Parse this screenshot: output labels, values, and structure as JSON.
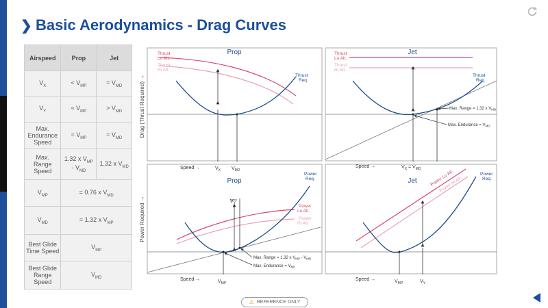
{
  "header": {
    "title": "Basic Aerodynamics - Drag Curves"
  },
  "table": {
    "headers": [
      "Airspeed",
      "Prop",
      "Jet"
    ],
    "rows": [
      {
        "label": "V",
        "label_sub": "X",
        "prop": "< V",
        "prop_sub": "MP",
        "jet": "= V",
        "jet_sub": "MD"
      },
      {
        "label": "V",
        "label_sub": "Y",
        "prop": "≈ V",
        "prop_sub": "MP",
        "jet": "> V",
        "jet_sub": "MD"
      },
      {
        "label": "Max. Endurance Speed",
        "prop": "= V",
        "prop_sub": "MP",
        "jet": "= V",
        "jet_sub": "MD"
      },
      {
        "label": "Max. Range Speed",
        "prop": "1.32 x V",
        "prop_sub": "MP",
        "prop_tail": "- V",
        "prop_tail_sub": "MD",
        "jet": "1.32 x V",
        "jet_sub": "MD"
      },
      {
        "label": "V",
        "label_sub": "MP",
        "merged": "= 0.76 x V",
        "merged_sub": "MD"
      },
      {
        "label": "V",
        "label_sub": "MD",
        "merged": "= 1.32 x V",
        "merged_sub": "MP"
      },
      {
        "label": "Best Glide Time Speed",
        "merged": "V",
        "merged_sub": "MP"
      },
      {
        "label": "Best Glide Range Speed",
        "merged": "V",
        "merged_sub": "MD"
      }
    ]
  },
  "diagram": {
    "y_label_top": "Drag (Thrust Required) →",
    "y_label_bottom": "Power Required →",
    "speed_label": "Speed →",
    "panels": {
      "prop_drag": {
        "title": "Prop",
        "thrust_lo": [
          "Thrust",
          "Lo Alt."
        ],
        "thrust_hi": [
          "Thrust",
          "Hi Alt."
        ],
        "curve_label": [
          "Thrust",
          "Req."
        ],
        "tick_vx": "V",
        "tick_vx_sub": "X",
        "tick_vmd": "V",
        "tick_vmd_sub": "MD"
      },
      "jet_drag": {
        "title": "Jet",
        "thrust_lo": [
          "Thrust",
          "Lo Alt."
        ],
        "thrust_hi": [
          "Thrust",
          "Hi Alt."
        ],
        "curve_label": [
          "Thrust",
          "Req."
        ],
        "max_range": "Max. Range = 1.32 x V",
        "max_range_sub": "MD",
        "max_endurance": "Max. Endurance = V",
        "max_endurance_sub": "MD",
        "tick": "V",
        "tick_sub": "X",
        "tick_mid": " = V",
        "tick_sub2": "MD"
      },
      "prop_power": {
        "title": "Prop",
        "curve_label": [
          "Power",
          "Req."
        ],
        "power_lo": [
          "Power",
          "Lo Alt."
        ],
        "power_hi": [
          "Power",
          "Hi Alt."
        ],
        "vy": "V",
        "vy_sub": "Y",
        "max_range": "Max. Range = 1.32 x V",
        "max_range_sub": "MP",
        "max_range_tail": " - V",
        "max_range_tail_sub": "MD",
        "max_endurance": "Max. Endurance = V",
        "max_endurance_sub": "MP",
        "tick_vmp": "V",
        "tick_vmp_sub": "MP"
      },
      "jet_power": {
        "title": "Jet",
        "curve_label": [
          "Power",
          "Req."
        ],
        "power_lo": "Power Lo Alt.",
        "power_hi": "Power Hi Alt.",
        "tick_vmp": "V",
        "tick_vmp_sub": "MP",
        "tick_vy": "V",
        "tick_vy_sub": "Y"
      }
    }
  },
  "footer": {
    "reference": "REFERENCE ONLY"
  },
  "colors": {
    "brand": "#1c4f9c",
    "curve": "#1f4e8c",
    "lo_alt": "#d9476a",
    "hi_alt": "#e8a3b6",
    "axis": "#777777"
  }
}
